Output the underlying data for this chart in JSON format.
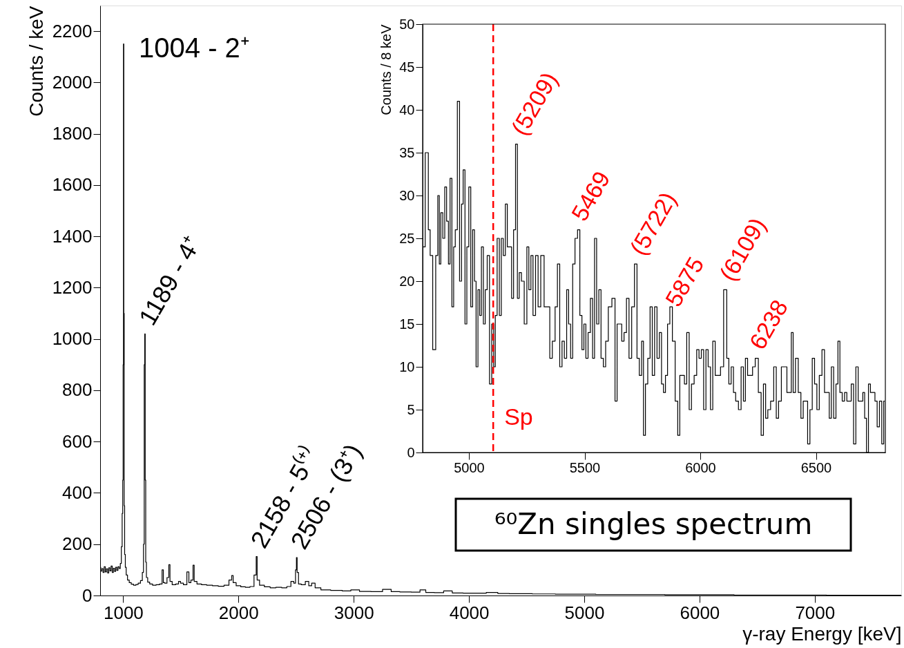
{
  "chart_data": [
    {
      "type": "step",
      "xlabel": "γ-ray Energy [keV]",
      "ylabel": "Counts / keV",
      "xlim": [
        800,
        7750
      ],
      "ylim": [
        0,
        2300
      ],
      "xticks": [
        1000,
        2000,
        3000,
        4000,
        5000,
        6000,
        7000
      ],
      "yticks": [
        0,
        200,
        400,
        600,
        800,
        1000,
        1200,
        1400,
        1600,
        1800,
        2000,
        2200
      ],
      "grid": false,
      "annotations": [
        {
          "text": "1004 - 2⁺",
          "x": 1004,
          "y": 2130
        },
        {
          "text": "1189 - 4⁺",
          "x": 1189,
          "y": 1020
        },
        {
          "text": "2158 - 5⁽⁺⁾",
          "x": 2158,
          "y": 152
        },
        {
          "text": "2506 - (3⁺)",
          "x": 2506,
          "y": 148
        },
        "⁶⁰Zn singles spectrum"
      ],
      "series": [
        {
          "color": "#000000",
          "x": [
            800,
            810,
            820,
            830,
            840,
            850,
            860,
            870,
            880,
            890,
            900,
            910,
            920,
            930,
            940,
            950,
            960,
            970,
            980,
            988,
            994,
            998,
            1001,
            1004,
            1007,
            1010,
            1015,
            1022,
            1030,
            1045,
            1060,
            1080,
            1100,
            1120,
            1140,
            1160,
            1172,
            1180,
            1185,
            1189,
            1193,
            1198,
            1205,
            1220,
            1240,
            1270,
            1300,
            1330,
            1345,
            1352,
            1370,
            1390,
            1402,
            1410,
            1440,
            1470,
            1490,
            1505,
            1540,
            1565,
            1575,
            1600,
            1612,
            1620,
            1660,
            1700,
            1750,
            1800,
            1850,
            1900,
            1935,
            1948,
            1960,
            2000,
            2040,
            2080,
            2120,
            2150,
            2158,
            2166,
            2200,
            2250,
            2300,
            2350,
            2400,
            2440,
            2470,
            2490,
            2500,
            2506,
            2512,
            2530,
            2560,
            2600,
            2620,
            2650,
            2680,
            2750,
            2850,
            2950,
            3000,
            3100,
            3200,
            3300,
            3350,
            3450,
            3550,
            3600,
            3650,
            3750,
            3810,
            3900,
            4000,
            4100,
            4200,
            4300,
            4400,
            4500,
            4600,
            4700,
            4800,
            5000,
            5200,
            5400,
            5600,
            5800,
            6000,
            6200,
            6400,
            6600,
            6800,
            7000,
            7200,
            7400,
            7600,
            7750
          ],
          "values": [
            110,
            95,
            105,
            90,
            112,
            92,
            104,
            88,
            108,
            96,
            115,
            90,
            106,
            94,
            110,
            98,
            112,
            105,
            125,
            190,
            320,
            450,
            900,
            2150,
            1100,
            350,
            160,
            110,
            80,
            60,
            50,
            44,
            40,
            43,
            48,
            58,
            90,
            200,
            900,
            1020,
            450,
            130,
            70,
            52,
            45,
            40,
            42,
            45,
            100,
            50,
            48,
            70,
            120,
            55,
            42,
            45,
            55,
            48,
            42,
            92,
            50,
            60,
            118,
            55,
            45,
            42,
            40,
            38,
            36,
            40,
            60,
            78,
            50,
            38,
            34,
            32,
            35,
            80,
            152,
            60,
            40,
            34,
            30,
            32,
            30,
            35,
            55,
            48,
            100,
            148,
            90,
            45,
            42,
            55,
            38,
            48,
            30,
            22,
            20,
            18,
            22,
            16,
            15,
            24,
            15,
            14,
            13,
            22,
            12,
            11,
            18,
            10,
            9,
            9,
            12,
            8,
            7,
            7,
            6,
            6,
            5,
            5,
            4,
            4,
            4,
            3,
            3,
            3,
            2,
            2,
            2,
            2,
            1,
            1,
            1,
            1
          ]
        }
      ]
    },
    {
      "type": "step",
      "ylabel": "Counts / 8 keV",
      "xlim": [
        4800,
        6800
      ],
      "ylim": [
        0,
        50
      ],
      "xticks": [
        5000,
        5500,
        6000,
        6500
      ],
      "yticks": [
        0,
        5,
        10,
        15,
        20,
        25,
        30,
        35,
        40,
        45,
        50
      ],
      "grid": false,
      "ref_lines": [
        {
          "axis": "x",
          "value": 5105,
          "label": "Sp",
          "color": "#ff0000",
          "line_style": "dashed"
        }
      ],
      "annotations": [
        {
          "text": "(5209)",
          "x": 5209,
          "y": 36
        },
        {
          "text": "5469",
          "x": 5469,
          "y": 26
        },
        {
          "text": "(5722)",
          "x": 5722,
          "y": 22
        },
        {
          "text": "5875",
          "x": 5875,
          "y": 16
        },
        {
          "text": "(6109)",
          "x": 6109,
          "y": 19
        },
        {
          "text": "6238",
          "x": 6238,
          "y": 11
        }
      ],
      "series": [
        {
          "color": "#000000",
          "x": [
            4802,
            4820,
            4829,
            4836,
            4851,
            4862,
            4869,
            4875,
            4882,
            4892,
            4899,
            4908,
            4915,
            4922,
            4931,
            4937,
            4945,
            4955,
            4964,
            4972,
            4978,
            4988,
            4994,
            5005,
            5011,
            5021,
            5027,
            5035,
            5043,
            5050,
            5058,
            5067,
            5074,
            5084,
            5094,
            5103,
            5111,
            5117,
            5127,
            5136,
            5144,
            5153,
            5162,
            5170,
            5180,
            5189,
            5197,
            5206,
            5213,
            5222,
            5232,
            5246,
            5255,
            5263,
            5273,
            5281,
            5295,
            5303,
            5318,
            5332,
            5345,
            5354,
            5367,
            5378,
            5387,
            5398,
            5407,
            5418,
            5427,
            5435,
            5444,
            5453,
            5464,
            5475,
            5484,
            5493,
            5501,
            5510,
            5520,
            5530,
            5539,
            5547,
            5557,
            5566,
            5576,
            5586,
            5596,
            5609,
            5627,
            5636,
            5645,
            5656,
            5665,
            5676,
            5686,
            5698,
            5709,
            5722,
            5731,
            5742,
            5751,
            5758,
            5768,
            5778,
            5788,
            5797,
            5808,
            5818,
            5828,
            5837,
            5845,
            5854,
            5863,
            5874,
            5885,
            5898,
            5907,
            5916,
            5927,
            5936,
            5947,
            5957,
            5967,
            5980,
            5989,
            6000,
            6009,
            6020,
            6029,
            6039,
            6049,
            6059,
            6070,
            6083,
            6092,
            6110,
            6119,
            6128,
            6139,
            6148,
            6158,
            6172,
            6181,
            6192,
            6198,
            6211,
            6221,
            6231,
            6244,
            6258,
            6268,
            6278,
            6287,
            6297,
            6311,
            6324,
            6333,
            6344,
            6357,
            6370,
            6379,
            6390,
            6397,
            6406,
            6417,
            6430,
            6440,
            6450,
            6459,
            6469,
            6479,
            6489,
            6499,
            6509,
            6520,
            6532,
            6542,
            6553,
            6562,
            6571,
            6582,
            6591,
            6599,
            6608,
            6619,
            6628,
            6639,
            6648,
            6657,
            6668,
            6677,
            6688,
            6698,
            6707,
            6714,
            6723,
            6731,
            6740,
            6750,
            6760,
            6769,
            6780,
            6789,
            6797
          ],
          "values": [
            24,
            35,
            26,
            23,
            12,
            23,
            30,
            22,
            28,
            25,
            31,
            27,
            22,
            32,
            17,
            24,
            26,
            41,
            20,
            29,
            33,
            15,
            24,
            31,
            17,
            26,
            20,
            10,
            19,
            16,
            24,
            15,
            19,
            23,
            8,
            15,
            10,
            16,
            25,
            16,
            25,
            23,
            29,
            24,
            24,
            18,
            26,
            36,
            18,
            21,
            20,
            15,
            24,
            19,
            23,
            16,
            23,
            17,
            23,
            17,
            17,
            11,
            13,
            17,
            22,
            10,
            13,
            11,
            19,
            15,
            11,
            22,
            25,
            26,
            16,
            12,
            15,
            11,
            14,
            18,
            11,
            25,
            15,
            19,
            11,
            10,
            13,
            17,
            18,
            6,
            15,
            15,
            13,
            14,
            18,
            11,
            17,
            22,
            11,
            9,
            13,
            2,
            8,
            11,
            17,
            9,
            17,
            11,
            14,
            8,
            7,
            9,
            15,
            17,
            13,
            6,
            2,
            9,
            9,
            8,
            14,
            5,
            8,
            9,
            12,
            11,
            12,
            5,
            12,
            10,
            5,
            13,
            9,
            9,
            10,
            19,
            11,
            8,
            10,
            7,
            6,
            5,
            10,
            6,
            11,
            9,
            9,
            10,
            11,
            7,
            2,
            8,
            4,
            5,
            6,
            10,
            4,
            6,
            10,
            10,
            7,
            7,
            14,
            7,
            11,
            7,
            4,
            6,
            6,
            1,
            5,
            11,
            8,
            5,
            9,
            12,
            7,
            7,
            4,
            10,
            4,
            8,
            13,
            7,
            6,
            7,
            6,
            6,
            8,
            1,
            10,
            6,
            6,
            7,
            4,
            0,
            8,
            7,
            7,
            6,
            3,
            6,
            1,
            6
          ]
        }
      ]
    }
  ]
}
